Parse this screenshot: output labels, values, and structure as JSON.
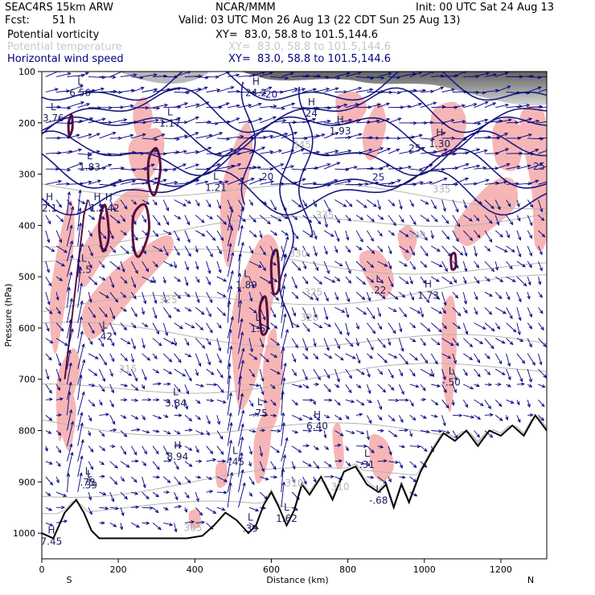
{
  "header": {
    "model": "SEAC4RS 15km ARW",
    "org": "NCAR/MMM",
    "init": "Init: 00 UTC Sat 24 Aug 13",
    "fcst_label": "Fcst:",
    "fcst_value": "51 h",
    "valid": "Valid: 03 UTC Mon 26 Aug 13 (22 CDT Sun 25 Aug 13)"
  },
  "fields": [
    {
      "name": "Potential vorticity",
      "xy": "XY=  83.0, 58.8 to 101.5,144.6",
      "color": "#000000"
    },
    {
      "name": "Potential temperature",
      "xy": "XY=  83.0, 58.8 to 101.5,144.6",
      "color": "#c8c8c8"
    },
    {
      "name": "Horizontal wind speed",
      "xy": "XY=  83.0, 58.8 to 101.5,144.6",
      "color": "#000080"
    }
  ],
  "colors": {
    "wind_contour": "#1a1a80",
    "vector": "#000080",
    "theta": "#b4b4b4",
    "pv_fill": "#f7b6b6",
    "pv_contour": "#5a0f3c",
    "terrain": "#000000"
  },
  "chart_data": {
    "type": "cross-section",
    "xlabel": "Distance (km)",
    "ylabel": "Pressure (hPa)",
    "xlim": [
      0,
      1320
    ],
    "ylim": [
      1050,
      100
    ],
    "x_ticks": [
      "0",
      "200",
      "400",
      "600",
      "800",
      "1000",
      "1200"
    ],
    "y_ticks": [
      "100",
      "200",
      "300",
      "400",
      "500",
      "600",
      "700",
      "800",
      "900",
      "1000"
    ],
    "end_labels": {
      "left": "S",
      "right": "N"
    },
    "terrain": {
      "x": [
        0,
        30,
        60,
        90,
        110,
        130,
        150,
        180,
        220,
        260,
        300,
        340,
        380,
        420,
        450,
        480,
        510,
        540,
        560,
        580,
        600,
        620,
        640,
        660,
        680,
        700,
        730,
        760,
        790,
        820,
        850,
        880,
        900,
        920,
        940,
        960,
        990,
        1020,
        1050,
        1080,
        1110,
        1140,
        1170,
        1200,
        1230,
        1260,
        1290,
        1320
      ],
      "p": [
        1000,
        1010,
        960,
        935,
        960,
        995,
        1010,
        1010,
        1010,
        1010,
        1010,
        1010,
        1010,
        1005,
        985,
        960,
        975,
        1000,
        985,
        945,
        920,
        950,
        985,
        955,
        905,
        925,
        890,
        935,
        880,
        870,
        905,
        920,
        905,
        950,
        905,
        940,
        880,
        840,
        805,
        820,
        800,
        830,
        800,
        810,
        790,
        810,
        770,
        800
      ]
    },
    "theta_labels": [
      {
        "x": 680,
        "p": 243,
        "text": "345"
      },
      {
        "x": 1045,
        "p": 330,
        "text": "335"
      },
      {
        "x": 740,
        "p": 380,
        "text": "335"
      },
      {
        "x": 980,
        "p": 420,
        "text": "330"
      },
      {
        "x": 670,
        "p": 455,
        "text": "330"
      },
      {
        "x": 710,
        "p": 530,
        "text": "325"
      },
      {
        "x": 330,
        "p": 545,
        "text": "325"
      },
      {
        "x": 700,
        "p": 580,
        "text": "320"
      },
      {
        "x": 225,
        "p": 680,
        "text": "315"
      },
      {
        "x": 780,
        "p": 910,
        "text": "310"
      },
      {
        "x": 660,
        "p": 903,
        "text": "310"
      },
      {
        "x": 395,
        "p": 990,
        "text": "305"
      }
    ],
    "wind_labels": [
      {
        "x": 590,
        "p": 305,
        "text": "20"
      },
      {
        "x": 975,
        "p": 250,
        "text": "25"
      },
      {
        "x": 880,
        "p": 306,
        "text": "25"
      },
      {
        "x": 1300,
        "p": 285,
        "text": "25"
      },
      {
        "x": 600,
        "p": 145,
        "text": "20"
      }
    ],
    "highs_lows": [
      {
        "x": 100,
        "p": 135,
        "kind": "L",
        "value": "6.56"
      },
      {
        "x": 30,
        "p": 185,
        "kind": "L",
        "value": "3.76"
      },
      {
        "x": 335,
        "p": 195,
        "kind": "L",
        "value": "1.17"
      },
      {
        "x": 560,
        "p": 135,
        "kind": "H",
        "value": "24.2"
      },
      {
        "x": 705,
        "p": 175,
        "kind": "H",
        "value": "24"
      },
      {
        "x": 780,
        "p": 210,
        "kind": "H",
        "value": "1.93"
      },
      {
        "x": 1040,
        "p": 235,
        "kind": "H",
        "value": "1.30"
      },
      {
        "x": 125,
        "p": 280,
        "kind": "L",
        "value": "1.83"
      },
      {
        "x": 455,
        "p": 320,
        "kind": "L",
        "value": "1.21"
      },
      {
        "x": 20,
        "p": 360,
        "kind": "H",
        "value": "2.1"
      },
      {
        "x": 175,
        "p": 360,
        "kind": "H",
        "value": "2.42"
      },
      {
        "x": 145,
        "p": 360,
        "kind": "H",
        "value": "1.2"
      },
      {
        "x": 110,
        "p": 480,
        "kind": "L",
        "value": "1.5"
      },
      {
        "x": 535,
        "p": 510,
        "kind": "L",
        "value": "1.89"
      },
      {
        "x": 880,
        "p": 520,
        "kind": "L",
        "value": ".22"
      },
      {
        "x": 1010,
        "p": 530,
        "kind": "H",
        "value": "1.73"
      },
      {
        "x": 565,
        "p": 595,
        "kind": "L",
        "value": "1.5"
      },
      {
        "x": 165,
        "p": 610,
        "kind": "L",
        "value": ".42"
      },
      {
        "x": 1070,
        "p": 700,
        "kind": "L",
        "value": "-.50"
      },
      {
        "x": 350,
        "p": 740,
        "kind": "L",
        "value": "3.84"
      },
      {
        "x": 570,
        "p": 760,
        "kind": "L",
        "value": ".75"
      },
      {
        "x": 720,
        "p": 785,
        "kind": "H",
        "value": "6.40"
      },
      {
        "x": 355,
        "p": 845,
        "kind": "H",
        "value": "8.94"
      },
      {
        "x": 505,
        "p": 855,
        "kind": "L",
        "value": "-.45"
      },
      {
        "x": 850,
        "p": 860,
        "kind": "L",
        "value": ".31"
      },
      {
        "x": 120,
        "p": 895,
        "kind": "L",
        "value": ".73"
      },
      {
        "x": 125,
        "p": 900,
        "kind": "L",
        "value": ".39"
      },
      {
        "x": 880,
        "p": 930,
        "kind": "L",
        "value": "-.68"
      },
      {
        "x": 640,
        "p": 965,
        "kind": "L",
        "value": "1.62"
      },
      {
        "x": 545,
        "p": 985,
        "kind": "L",
        "value": ".39"
      },
      {
        "x": 25,
        "p": 1010,
        "kind": "H",
        "value": "7.45"
      }
    ]
  }
}
